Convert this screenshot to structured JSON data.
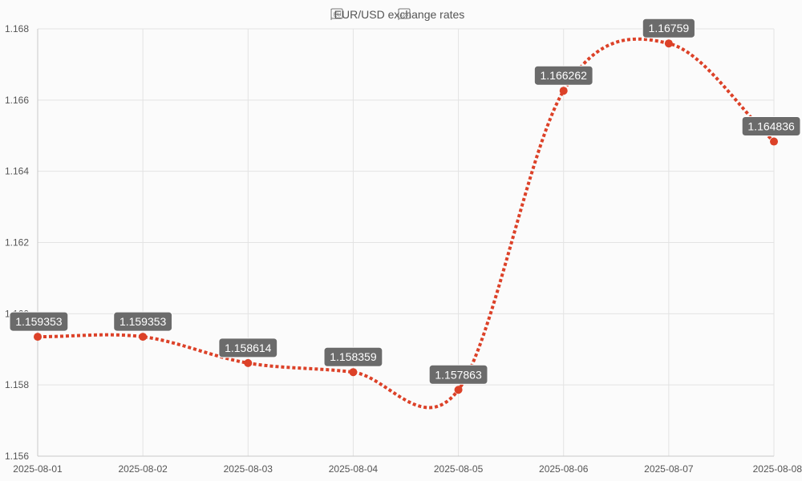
{
  "chart_data": {
    "type": "line",
    "title": "EUR/USD exchange rates",
    "title_icon_left": "eu-flag-icon",
    "title_icon_right": "us-flag-icon",
    "x": [
      "2025-08-01",
      "2025-08-02",
      "2025-08-03",
      "2025-08-04",
      "2025-08-05",
      "2025-08-06",
      "2025-08-07",
      "2025-08-08"
    ],
    "series": [
      {
        "values": [
          1.159353,
          1.159353,
          1.158614,
          1.158359,
          1.157863,
          1.166262,
          1.16759,
          1.164836
        ],
        "labels": [
          "1.159353",
          "1.159353",
          "1.158614",
          "1.158359",
          "1.157863",
          "1.166262",
          "1.16759",
          "1.164836"
        ],
        "color": "#dc4128",
        "line_style": "dotted",
        "smooth": true
      }
    ],
    "y_ticks": [
      "1.156",
      "1.158",
      "1.160",
      "1.162",
      "1.164",
      "1.166",
      "1.168"
    ],
    "ylim": [
      1.156,
      1.168
    ],
    "grid": true,
    "legend": "none",
    "data_label_bg": "#6b6b6b"
  }
}
